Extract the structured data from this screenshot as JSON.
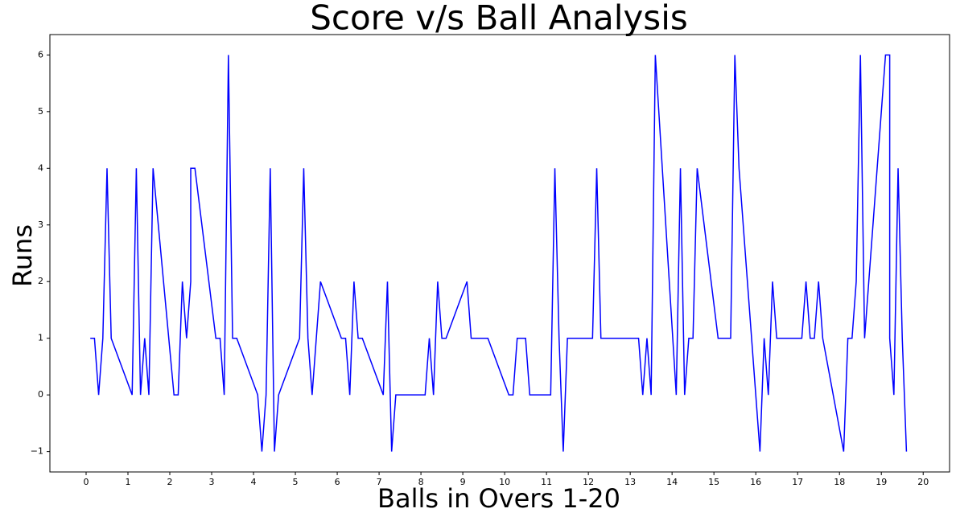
{
  "chart_data": {
    "type": "line",
    "title": "Score v/s Ball Analysis",
    "x_label": "Balls in Overs 1-20",
    "y_label": "Runs",
    "x": [
      0.1,
      0.2,
      0.3,
      0.4,
      0.5,
      0.6,
      1.1,
      1.2,
      1.3,
      1.4,
      1.5,
      1.6,
      2.1,
      2.2,
      2.3,
      2.4,
      2.5,
      2.5,
      2.6,
      3.1,
      3.2,
      3.3,
      3.4,
      3.5,
      3.6,
      4.1,
      4.2,
      4.3,
      4.4,
      4.5,
      4.6,
      5.1,
      5.2,
      5.3,
      5.4,
      5.5,
      5.6,
      6.1,
      6.2,
      6.3,
      6.4,
      6.5,
      6.6,
      7.1,
      7.2,
      7.3,
      7.4,
      7.5,
      7.6,
      8.1,
      8.2,
      8.3,
      8.4,
      8.5,
      8.6,
      9.1,
      9.2,
      9.3,
      9.4,
      9.5,
      9.6,
      10.1,
      10.2,
      10.3,
      10.4,
      10.5,
      10.6,
      11.1,
      11.2,
      11.3,
      11.4,
      11.5,
      11.6,
      12.1,
      12.2,
      12.3,
      12.4,
      12.5,
      12.6,
      13.1,
      13.2,
      13.3,
      13.4,
      13.5,
      13.6,
      14.1,
      14.2,
      14.3,
      14.4,
      14.5,
      14.6,
      15.1,
      15.2,
      15.3,
      15.4,
      15.5,
      15.6,
      16.1,
      16.2,
      16.3,
      16.4,
      16.5,
      16.6,
      17.1,
      17.2,
      17.3,
      17.4,
      17.5,
      17.6,
      18.1,
      18.2,
      18.3,
      18.4,
      18.5,
      18.6,
      19.1,
      19.2,
      19.2,
      19.3,
      19.4,
      19.5,
      19.6
    ],
    "series": [
      {
        "name": "Runs",
        "color": "#0000ff",
        "values": [
          1,
          1,
          0,
          1,
          4,
          1,
          0,
          4,
          0,
          1,
          0,
          4,
          0,
          0,
          2,
          1,
          2,
          4,
          4,
          1,
          1,
          0,
          6,
          1,
          1,
          0,
          -1,
          0,
          4,
          -1,
          0,
          1,
          4,
          1,
          0,
          1,
          2,
          1,
          1,
          0,
          2,
          1,
          1,
          0,
          2,
          -1,
          0,
          0,
          0,
          0,
          1,
          0,
          2,
          1,
          1,
          2,
          1,
          1,
          1,
          1,
          1,
          0,
          0,
          1,
          1,
          1,
          0,
          0,
          4,
          1,
          -1,
          1,
          1,
          1,
          4,
          1,
          1,
          1,
          1,
          1,
          1,
          0,
          1,
          0,
          6,
          0,
          4,
          0,
          1,
          1,
          4,
          1,
          1,
          1,
          1,
          6,
          4,
          -1,
          1,
          0,
          2,
          1,
          1,
          1,
          2,
          1,
          1,
          2,
          1,
          -1,
          1,
          1,
          2,
          6,
          1,
          6,
          6,
          1,
          0,
          4,
          1,
          -1
        ]
      }
    ],
    "xlim": [
      -0.865,
      20.63
    ],
    "ylim": [
      -1.36,
      6.36
    ],
    "xticks": [
      0,
      1,
      2,
      3,
      4,
      5,
      6,
      7,
      8,
      9,
      10,
      11,
      12,
      13,
      14,
      15,
      16,
      17,
      18,
      19,
      20
    ],
    "yticks": [
      {
        "value": -1,
        "label": "−1"
      },
      0,
      1,
      2,
      3,
      4,
      5,
      6
    ]
  }
}
